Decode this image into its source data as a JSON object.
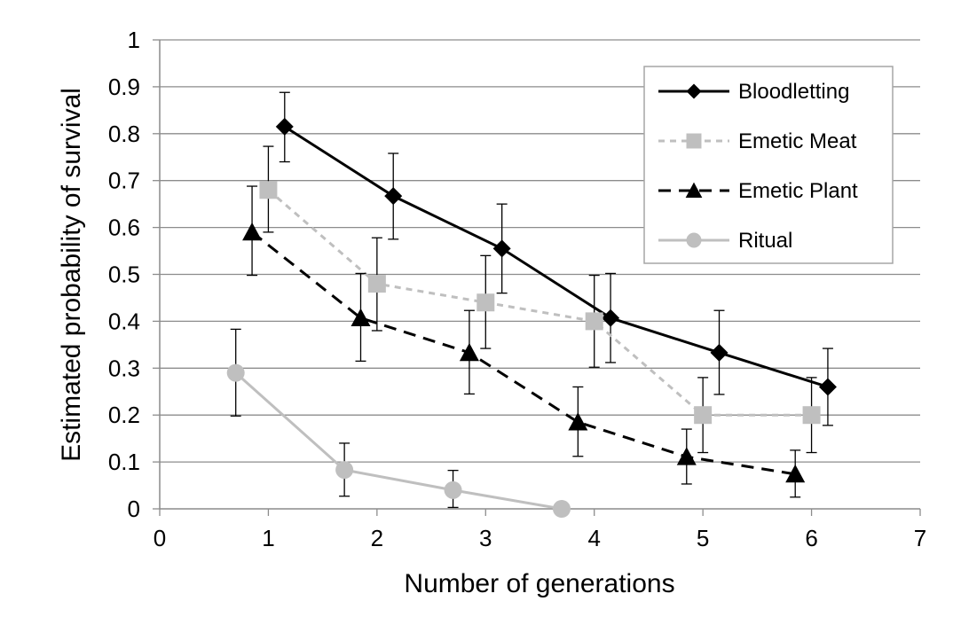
{
  "chart_data": {
    "type": "line",
    "title": "",
    "xlabel": "Number of generations",
    "ylabel": "Estimated probability of survival",
    "xlim": [
      0,
      7
    ],
    "ylim": [
      0,
      1
    ],
    "x_ticks": [
      "0",
      "1",
      "2",
      "3",
      "4",
      "5",
      "6",
      "7"
    ],
    "y_ticks": [
      "0",
      "0.1",
      "0.2",
      "0.3",
      "0.4",
      "0.5",
      "0.6",
      "0.7",
      "0.8",
      "0.9",
      "1"
    ],
    "grid": "horizontal",
    "legend_position": "top-right",
    "series": [
      {
        "name": "Bloodletting",
        "marker": "diamond",
        "line": "solid",
        "color": "#000000",
        "points": [
          {
            "x": 1.15,
            "y": 0.815,
            "lo": 0.74,
            "hi": 0.888
          },
          {
            "x": 2.15,
            "y": 0.667,
            "lo": 0.575,
            "hi": 0.758
          },
          {
            "x": 3.15,
            "y": 0.555,
            "lo": 0.46,
            "hi": 0.65
          },
          {
            "x": 4.15,
            "y": 0.407,
            "lo": 0.312,
            "hi": 0.502
          },
          {
            "x": 5.15,
            "y": 0.333,
            "lo": 0.244,
            "hi": 0.423
          },
          {
            "x": 6.15,
            "y": 0.26,
            "lo": 0.178,
            "hi": 0.342
          }
        ]
      },
      {
        "name": "Emetic Meat",
        "marker": "square",
        "line": "dotted",
        "color": "#bfbfbf",
        "points": [
          {
            "x": 1.0,
            "y": 0.68,
            "lo": 0.59,
            "hi": 0.773
          },
          {
            "x": 2.0,
            "y": 0.48,
            "lo": 0.38,
            "hi": 0.578
          },
          {
            "x": 3.0,
            "y": 0.44,
            "lo": 0.342,
            "hi": 0.54
          },
          {
            "x": 4.0,
            "y": 0.4,
            "lo": 0.302,
            "hi": 0.498
          },
          {
            "x": 5.0,
            "y": 0.2,
            "lo": 0.12,
            "hi": 0.28
          },
          {
            "x": 6.0,
            "y": 0.2,
            "lo": 0.12,
            "hi": 0.28
          }
        ]
      },
      {
        "name": "Emetic Plant",
        "marker": "triangle",
        "line": "dashed",
        "color": "#000000",
        "points": [
          {
            "x": 0.85,
            "y": 0.59,
            "lo": 0.498,
            "hi": 0.688
          },
          {
            "x": 1.85,
            "y": 0.407,
            "lo": 0.315,
            "hi": 0.502
          },
          {
            "x": 2.85,
            "y": 0.333,
            "lo": 0.245,
            "hi": 0.423
          },
          {
            "x": 3.85,
            "y": 0.185,
            "lo": 0.112,
            "hi": 0.26
          },
          {
            "x": 4.85,
            "y": 0.111,
            "lo": 0.053,
            "hi": 0.17
          },
          {
            "x": 5.85,
            "y": 0.074,
            "lo": 0.025,
            "hi": 0.125
          }
        ]
      },
      {
        "name": "Ritual",
        "marker": "circle",
        "line": "solid",
        "color": "#bfbfbf",
        "points": [
          {
            "x": 0.7,
            "y": 0.29,
            "lo": 0.198,
            "hi": 0.383
          },
          {
            "x": 1.7,
            "y": 0.083,
            "lo": 0.027,
            "hi": 0.14
          },
          {
            "x": 2.7,
            "y": 0.04,
            "lo": 0.003,
            "hi": 0.082
          },
          {
            "x": 3.7,
            "y": 0.0,
            "lo": 0.0,
            "hi": 0.0
          }
        ]
      }
    ]
  }
}
